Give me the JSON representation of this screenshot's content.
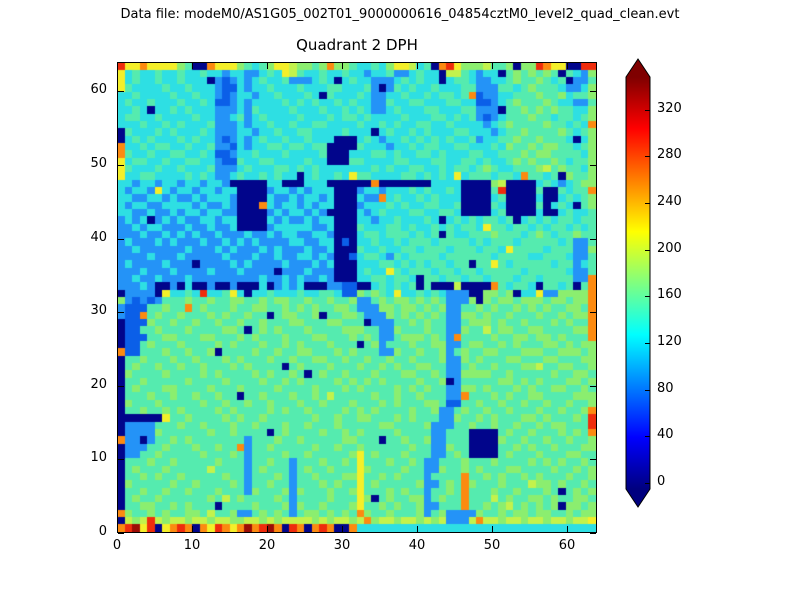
{
  "header": {
    "datafile_label": "Data file: modeM0/AS1G05_002T01_9000000616_04854cztM0_level2_quad_clean.evt"
  },
  "chart_data": {
    "type": "heatmap",
    "title": "Quadrant 2 DPH",
    "xlabel": "",
    "ylabel": "",
    "x_range": [
      0,
      64
    ],
    "y_range": [
      0,
      64
    ],
    "x_ticks": [
      0,
      10,
      20,
      30,
      40,
      50,
      60
    ],
    "y_ticks": [
      0,
      10,
      20,
      30,
      40,
      50,
      60
    ],
    "grid_size": 64,
    "colormap": "jet",
    "grid": "off",
    "colorbar": {
      "position": "right",
      "extend": "both",
      "ticks": [
        0,
        40,
        80,
        120,
        160,
        200,
        240,
        280,
        320
      ],
      "range_estimate": [
        -5,
        348
      ]
    },
    "value_buckets": {
      "0": 0,
      "1": 70,
      "2": 95,
      "3": 125,
      "4": 148,
      "5": 168,
      "6": 190,
      "7": 212,
      "8": 255,
      "9": 300,
      "A": 335
    },
    "bucket_colors": {
      "0": "#01058B",
      "1": "#0B5FE8",
      "2": "#2493F7",
      "3": "#2EDFE3",
      "4": "#55EBAF",
      "5": "#8BEE6F",
      "6": "#C3F24C",
      "7": "#F4EF29",
      "8": "#FC8A10",
      "9": "#EF2C0C",
      "A": "#9C0D06"
    },
    "rows_top_to_bottom": [
      "9778777754008777543457765545855433435776340897555644505598770099",
      "7343343343343323322343764334334332334223433066432330454545404325",
      "7343343343330212323433422234303433222343433034432233454454340224",
      "7433334334333211323343334333443334202434334333442224434544432235",
      "3343333433433212332334333430433343223343343443481223344454453445",
      "3433433343343112323333434343343433224334433344331123454445433224",
      "3343033434333222324333343334334343223433344333442220445454544335",
      "3443343333433223423433334333434434333343334434342123444544344345",
      "3334334343334222323343343344333343343433443343333234544445443438",
      "0433343433343222332334334433334333034334343334433323445444454345",
      "0343433343433212323433433433300034323343434343342334454454443035",
      "8334344334334221323344344344000043332334344334433343544545544345",
      "8433433443343112334333433334000333443433443433344334445455444435",
      "7344334334433211433443333433000443333443334433443433454544543445",
      "7433343343334222343334434343333333434334433434434543344456454435",
      "7334433334343223433434330343343744333344343437344434438443405445",
      "3323323323323320000033000333000000800000003333000056000034323455",
      "3233273233233233000023323233300023323334343343000049000040043448",
      "3322332322323332000032232332300032283433434333000034000030034345",
      "3233223333232232000832332323300023334343344334000043000040343045",
      "3322322323323322000023233232000032343334433443000034000030034334",
      "2323023232233233000032322323300033233433343034343443403434344344",
      "2232332223223223000023333322300043334434334343443744344343443434",
      "2223223232322322232232332233200034434443434043344454443454344544",
      "2322232322232232323222233223301033433434443444434344434444434224",
      "2232222223222323222323222322300043343344344434443443744443444225",
      "2222322232222232223223223323200134432434444344444434444334443224",
      "2322223222022223232222322232300033344343434434404474344444344234",
      "2223222322223222322220222322200034337434443443443444443444443224",
      "2232232223222222222322323223200033443443044344344344434434444228",
      "2223200203002002000302323000221100343434040006000084344304434048",
      "0222207334393347303343334334431154543733434322200554503372255558",
      "5212124445445445544545544544544522454554545422250545545554554558",
      "2111445448454445445544545454455422255455454522445454454545445548",
      "2118454454445454454404554450445542225454545422554544544454454558",
      "0111544544544544544544455444554440222445454422455545445444545448",
      "0114454445444455404545444544445554422544454422544645544554444558",
      "0111445544455444545444544455444545422455545428444454455455454448",
      "0114544454444545444544545444544404524445445522455445454445545455",
      "8114445445445044445445445544454544422544544524544554445554455545",
      "0445444544544454544454454455445445445445444522545444554445544455",
      "0454454454454445454444045444544454454544554422454454445564455445",
      "0544445444454544445454454045445444544455445422555544544444544554",
      "0445444445444454444544545444454545454444544502444445545454445545",
      "0454445544445444544445444454445454444545454422554544454544554454",
      "0444544544544544044544454454644444544544544422844454544554444555",
      "0544454444454454454454445445444544454544455411445445445445445445",
      "0445445454444545444454544544445454544445445224544544544454454458",
      "0000007445444454544544444454454455444545444225445454445545444549",
      "0222244454454445445444544544454444455444452224454454454454554449",
      "0222254444445445444404544445445454444544442244400004544544454548",
      "8220244545444444424445445444445544404454452244400005445445445445",
      "0222445444544544824454444454454454444445442254400004454544544455",
      "0224454444454445424444544544444574544454442245400004544454445544",
      "0444544544444544424454424445445474445445422444544454444545454454",
      "0454445444446444424544424544544475444454422544545444554444544545",
      "0445454454444454424445424454445574454544424444844545445454445445",
      "0544444544544445424454424445454474544444522454854445444655454454",
      "0445445445444544425444525444544574445454424454844454454445404545",
      "0454454444445464544445424444544475045445524544844464544554544554",
      "0445544545444044445444525445444574454544522444844545645454505545",
      "8544545445546445224545424554545485445444524522225445455455445455",
      "0656965665665665566565666656566568566566565622268665665665665667",
      "89A7907898087987"
    ],
    "last_row": "8A89A80980898008"
  },
  "assembly_note": "rows_top_to_bottom holds rows y=63..y=2; bottom two rows in bottom_rows",
  "bottom_rows": [
    "0656965665665665566565666656566568566566565622268665665665665667",
    "89A790789808798 7"
  ]
}
